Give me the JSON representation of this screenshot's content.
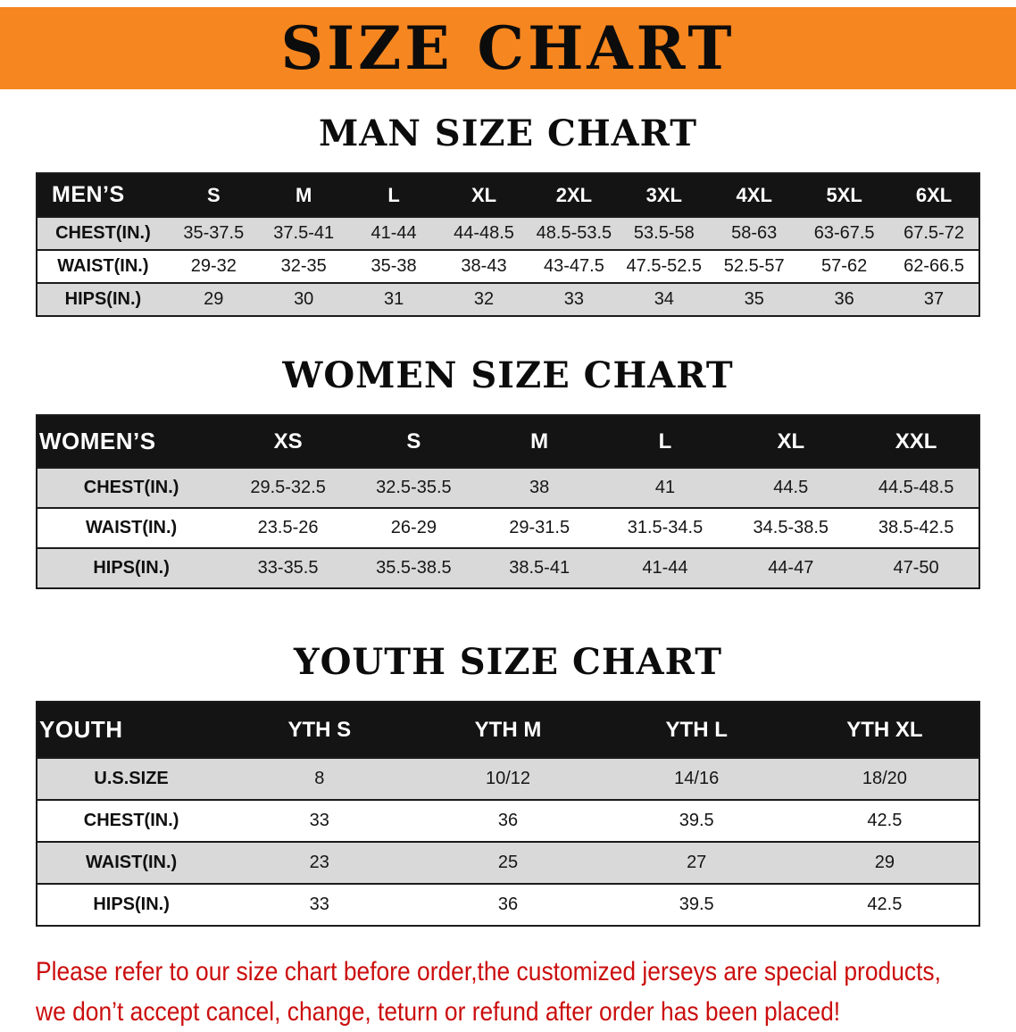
{
  "banner": {
    "title": "SIZE CHART"
  },
  "sections": [
    {
      "heading": "MAN SIZE CHART",
      "table": {
        "corner": "MEN’S",
        "columns": [
          "S",
          "M",
          "L",
          "XL",
          "2XL",
          "3XL",
          "4XL",
          "5XL",
          "6XL"
        ],
        "rows": [
          {
            "label": "CHEST(IN.)",
            "values": [
              "35-37.5",
              "37.5-41",
              "41-44",
              "44-48.5",
              "48.5-53.5",
              "53.5-58",
              "58-63",
              "63-67.5",
              "67.5-72"
            ]
          },
          {
            "label": "WAIST(IN.)",
            "values": [
              "29-32",
              "32-35",
              "35-38",
              "38-43",
              "43-47.5",
              "47.5-52.5",
              "52.5-57",
              "57-62",
              "62-66.5"
            ]
          },
          {
            "label": "HIPS(IN.)",
            "values": [
              "29",
              "30",
              "31",
              "32",
              "33",
              "34",
              "35",
              "36",
              "37"
            ]
          }
        ]
      }
    },
    {
      "heading": "WOMEN SIZE CHART",
      "table": {
        "corner": "WOMEN’S",
        "columns": [
          "XS",
          "S",
          "M",
          "L",
          "XL",
          "XXL"
        ],
        "rows": [
          {
            "label": "CHEST(IN.)",
            "values": [
              "29.5-32.5",
              "32.5-35.5",
              "38",
              "41",
              "44.5",
              "44.5-48.5"
            ]
          },
          {
            "label": "WAIST(IN.)",
            "values": [
              "23.5-26",
              "26-29",
              "29-31.5",
              "31.5-34.5",
              "34.5-38.5",
              "38.5-42.5"
            ]
          },
          {
            "label": "HIPS(IN.)",
            "values": [
              "33-35.5",
              "35.5-38.5",
              "38.5-41",
              "41-44",
              "44-47",
              "47-50"
            ]
          }
        ]
      }
    },
    {
      "heading": "YOUTH SIZE CHART",
      "table": {
        "corner": "YOUTH",
        "columns": [
          "YTH S",
          "YTH M",
          "YTH L",
          "YTH XL"
        ],
        "rows": [
          {
            "label": "U.S.SIZE",
            "values": [
              "8",
              "10/12",
              "14/16",
              "18/20"
            ]
          },
          {
            "label": "CHEST(IN.)",
            "values": [
              "33",
              "36",
              "39.5",
              "42.5"
            ]
          },
          {
            "label": "WAIST(IN.)",
            "values": [
              "23",
              "25",
              "27",
              "29"
            ]
          },
          {
            "label": "HIPS(IN.)",
            "values": [
              "33",
              "36",
              "39.5",
              "42.5"
            ]
          }
        ]
      }
    }
  ],
  "disclaimer": {
    "line1": "Please refer to our size chart before order,the customized jerseys are special products,",
    "line2": "we don’t accept cancel, change, teturn or refund after order has been placed!"
  },
  "colors": {
    "banner_bg": "#f6861f",
    "table_header_bg": "#141414",
    "row_alt_bg": "#d9d9d9",
    "disclaimer_text": "#cb0e0e"
  }
}
